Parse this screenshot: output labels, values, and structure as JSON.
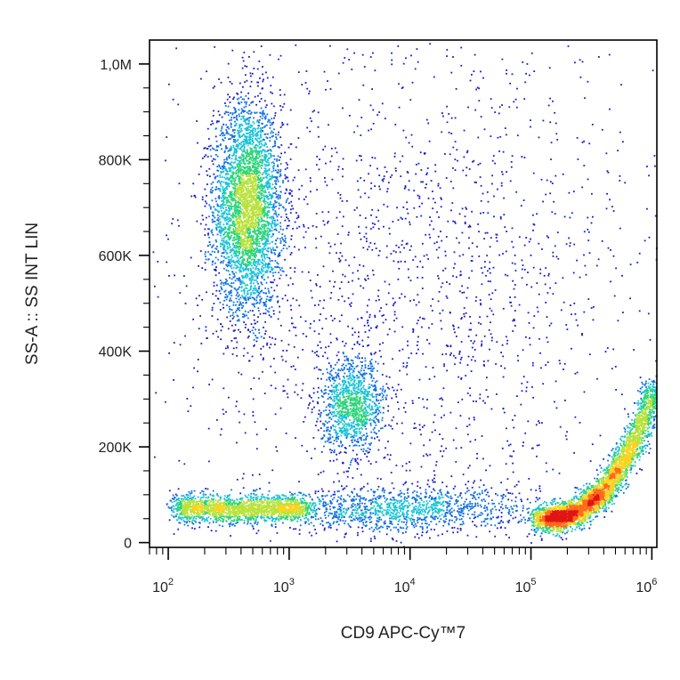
{
  "chart_data": {
    "type": "scatter",
    "subtype": "flow-cytometry-density-dot-plot",
    "xlabel": "CD9 APC-Cy™7",
    "ylabel": "SS-A :: SS INT LIN",
    "x_scale": "log",
    "y_scale": "linear",
    "xlim": [
      70,
      1100000
    ],
    "ylim": [
      -10000,
      1050000
    ],
    "x_ticks": [
      {
        "value": 100,
        "base": "10",
        "exp": "2"
      },
      {
        "value": 1000,
        "base": "10",
        "exp": "3"
      },
      {
        "value": 10000,
        "base": "10",
        "exp": "4"
      },
      {
        "value": 100000,
        "base": "10",
        "exp": "5"
      },
      {
        "value": 1000000,
        "base": "10",
        "exp": "6"
      }
    ],
    "y_ticks": [
      {
        "value": 0,
        "label": "0"
      },
      {
        "value": 200000,
        "label": "200K"
      },
      {
        "value": 400000,
        "label": "400K"
      },
      {
        "value": 600000,
        "label": "600K"
      },
      {
        "value": 800000,
        "label": "800K"
      },
      {
        "value": 1000000,
        "label": "1,0M"
      }
    ],
    "grid": false,
    "legend": "none",
    "color_scale": [
      "#1a1acc",
      "#0f6fe0",
      "#17c3d6",
      "#2fd47a",
      "#b9e23a",
      "#ffd21e",
      "#ff6a1a",
      "#e01515"
    ],
    "populations": [
      {
        "center_log10_x": 2.65,
        "center_y": 700000,
        "sd_log10_x": 0.14,
        "sd_y": 110000,
        "weight": 0.27
      },
      {
        "center_log10_x": 2.42,
        "center_y": 72000,
        "sd_log10_x": 0.2,
        "sd_y": 22000,
        "weight": 0.14
      },
      {
        "center_log10_x": 3.52,
        "center_y": 285000,
        "sd_log10_x": 0.13,
        "sd_y": 48000,
        "weight": 0.08
      },
      {
        "center_log10_x": 5.55,
        "center_y": 120000,
        "sd_log10_x": 0.22,
        "sd_y": 60000,
        "weight": 0.28
      },
      {
        "center_log10_x": 3.9,
        "center_y": 70000,
        "sd_log10_x": 0.55,
        "sd_y": 25000,
        "weight": 0.09
      },
      {
        "center_log10_x": 4.0,
        "center_y": 550000,
        "sd_log10_x": 1.0,
        "sd_y": 280000,
        "weight": 0.14
      }
    ],
    "total_events": 14000
  }
}
